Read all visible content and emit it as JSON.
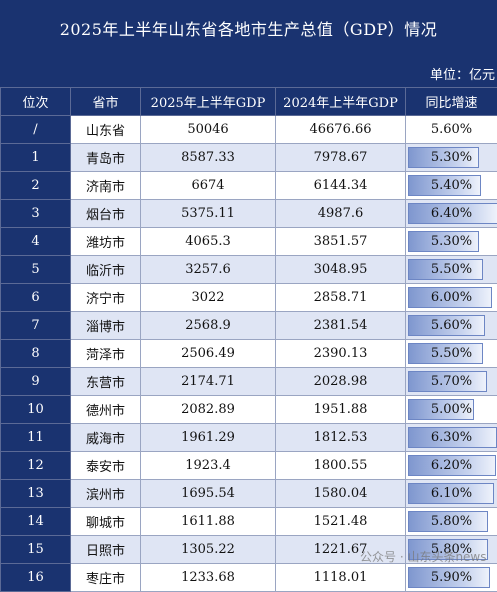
{
  "title": "2025年上半年山东省各地市生产总值（GDP）情况",
  "unit": "单位：亿元",
  "columns": [
    "位次",
    "省市",
    "2025年上半年GDP",
    "2024年上半年GDP",
    "同比增速"
  ],
  "rows": [
    {
      "rank": "/",
      "city": "山东省",
      "gdp2025": "50046",
      "gdp2024": "46676.66",
      "growth": "5.60%",
      "growth_value": 5.6
    },
    {
      "rank": "1",
      "city": "青岛市",
      "gdp2025": "8587.33",
      "gdp2024": "7978.67",
      "growth": "5.30%",
      "growth_value": 5.3
    },
    {
      "rank": "2",
      "city": "济南市",
      "gdp2025": "6674",
      "gdp2024": "6144.34",
      "growth": "5.40%",
      "growth_value": 5.4
    },
    {
      "rank": "3",
      "city": "烟台市",
      "gdp2025": "5375.11",
      "gdp2024": "4987.6",
      "growth": "6.40%",
      "growth_value": 6.4
    },
    {
      "rank": "4",
      "city": "潍坊市",
      "gdp2025": "4065.3",
      "gdp2024": "3851.57",
      "growth": "5.30%",
      "growth_value": 5.3
    },
    {
      "rank": "5",
      "city": "临沂市",
      "gdp2025": "3257.6",
      "gdp2024": "3048.95",
      "growth": "5.50%",
      "growth_value": 5.5
    },
    {
      "rank": "6",
      "city": "济宁市",
      "gdp2025": "3022",
      "gdp2024": "2858.71",
      "growth": "6.00%",
      "growth_value": 6.0
    },
    {
      "rank": "7",
      "city": "淄博市",
      "gdp2025": "2568.9",
      "gdp2024": "2381.54",
      "growth": "5.60%",
      "growth_value": 5.6
    },
    {
      "rank": "8",
      "city": "菏泽市",
      "gdp2025": "2506.49",
      "gdp2024": "2390.13",
      "growth": "5.50%",
      "growth_value": 5.5
    },
    {
      "rank": "9",
      "city": "东营市",
      "gdp2025": "2174.71",
      "gdp2024": "2028.98",
      "growth": "5.70%",
      "growth_value": 5.7
    },
    {
      "rank": "10",
      "city": "德州市",
      "gdp2025": "2082.89",
      "gdp2024": "1951.88",
      "growth": "5.00%",
      "growth_value": 5.0
    },
    {
      "rank": "11",
      "city": "威海市",
      "gdp2025": "1961.29",
      "gdp2024": "1812.53",
      "growth": "6.30%",
      "growth_value": 6.3
    },
    {
      "rank": "12",
      "city": "泰安市",
      "gdp2025": "1923.4",
      "gdp2024": "1800.55",
      "growth": "6.20%",
      "growth_value": 6.2
    },
    {
      "rank": "13",
      "city": "滨州市",
      "gdp2025": "1695.54",
      "gdp2024": "1580.04",
      "growth": "6.10%",
      "growth_value": 6.1
    },
    {
      "rank": "14",
      "city": "聊城市",
      "gdp2025": "1611.88",
      "gdp2024": "1521.48",
      "growth": "5.80%",
      "growth_value": 5.8
    },
    {
      "rank": "15",
      "city": "日照市",
      "gdp2025": "1305.22",
      "gdp2024": "1221.67",
      "growth": "5.80%",
      "growth_value": 5.8
    },
    {
      "rank": "16",
      "city": "枣庄市",
      "gdp2025": "1233.68",
      "gdp2024": "1118.01",
      "growth": "5.90%",
      "growth_value": 5.9
    }
  ],
  "watermark": "公众号 · 山东头条news"
}
